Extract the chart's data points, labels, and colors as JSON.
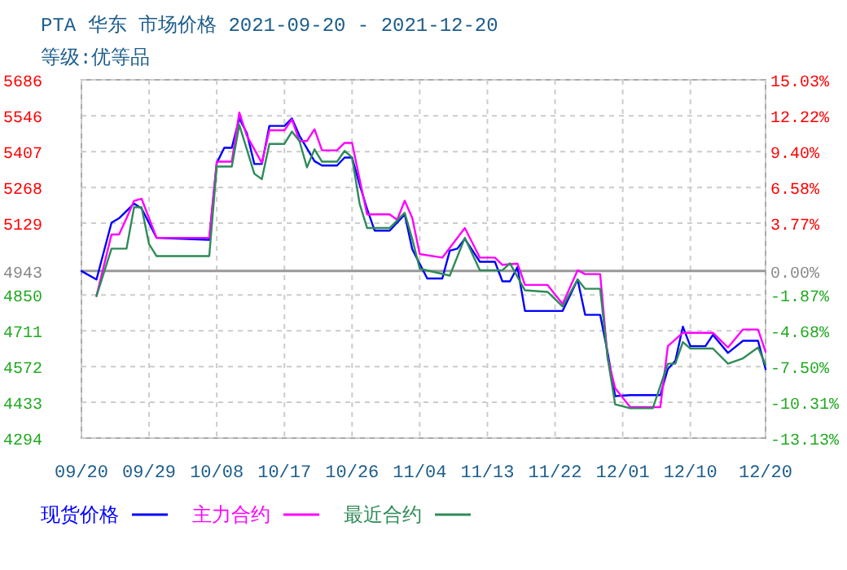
{
  "chart_data": {
    "type": "line",
    "title": "PTA 华东 市场价格 2021-09-20 - 2021-12-20",
    "subtitle": "等级:优等品",
    "xlim": [
      "2021-09-20",
      "2021-12-20"
    ],
    "xticks": [
      {
        "value": "2021-09-20",
        "label": "09/20"
      },
      {
        "value": "2021-09-29",
        "label": "09/29"
      },
      {
        "value": "2021-10-08",
        "label": "10/08"
      },
      {
        "value": "2021-10-17",
        "label": "10/17"
      },
      {
        "value": "2021-10-26",
        "label": "10/26"
      },
      {
        "value": "2021-11-04",
        "label": "11/04"
      },
      {
        "value": "2021-11-13",
        "label": "11/13"
      },
      {
        "value": "2021-11-22",
        "label": "11/22"
      },
      {
        "value": "2021-12-01",
        "label": "12/01"
      },
      {
        "value": "2021-12-10",
        "label": "12/10"
      },
      {
        "value": "2021-12-20",
        "label": "12/20"
      }
    ],
    "ylim": [
      4294,
      5686
    ],
    "yticks": [
      4294,
      4433,
      4572,
      4711,
      4850,
      4943,
      5129,
      5268,
      5407,
      5546,
      5686
    ],
    "y2lim": [
      -13.13,
      15.03
    ],
    "y2ticks": [
      {
        "value": -13.13,
        "label": "-13.13%"
      },
      {
        "value": -10.31,
        "label": "-10.31%"
      },
      {
        "value": -7.5,
        "label": "-7.50%"
      },
      {
        "value": -4.68,
        "label": "-4.68%"
      },
      {
        "value": -1.87,
        "label": "-1.87%"
      },
      {
        "value": 0,
        "label": "0.00%"
      },
      {
        "value": 3.77,
        "label": "3.77%"
      },
      {
        "value": 6.58,
        "label": "6.58%"
      },
      {
        "value": 9.4,
        "label": "9.40%"
      },
      {
        "value": 12.22,
        "label": "12.22%"
      },
      {
        "value": 15.03,
        "label": "15.03%"
      }
    ],
    "ref_lines": [
      {
        "axis": "y",
        "value": 4943,
        "color": "#999999"
      }
    ],
    "grid": true,
    "legend": "bottom",
    "marker": "none",
    "line_style": "solid",
    "series": [
      {
        "name": "现货价格",
        "color": "#0000ff",
        "x": [
          "2021-09-20",
          "2021-09-22",
          "2021-09-24",
          "2021-09-25",
          "2021-09-27",
          "2021-09-28",
          "2021-09-30",
          "2021-10-07",
          "2021-10-08",
          "2021-10-09",
          "2021-10-10",
          "2021-10-11",
          "2021-10-12",
          "2021-10-13",
          "2021-10-14",
          "2021-10-15",
          "2021-10-17",
          "2021-10-18",
          "2021-10-19",
          "2021-10-21",
          "2021-10-22",
          "2021-10-24",
          "2021-10-25",
          "2021-10-26",
          "2021-10-27",
          "2021-10-28",
          "2021-10-29",
          "2021-10-31",
          "2021-11-02",
          "2021-11-03",
          "2021-11-05",
          "2021-11-07",
          "2021-11-08",
          "2021-11-09",
          "2021-11-10",
          "2021-11-12",
          "2021-11-14",
          "2021-11-15",
          "2021-11-16",
          "2021-11-17",
          "2021-11-18",
          "2021-11-23",
          "2021-11-25",
          "2021-11-26",
          "2021-11-28",
          "2021-11-29",
          "2021-11-30",
          "2021-12-02",
          "2021-12-06",
          "2021-12-07",
          "2021-12-08",
          "2021-12-09",
          "2021-12-10",
          "2021-12-12",
          "2021-12-13",
          "2021-12-15",
          "2021-12-17",
          "2021-12-19",
          "2021-12-20"
        ],
        "values": [
          4943,
          4910,
          5131,
          5148,
          5205,
          5186,
          5072,
          5064,
          5363,
          5422,
          5422,
          5536,
          5479,
          5359,
          5359,
          5507,
          5507,
          5536,
          5469,
          5370,
          5353,
          5353,
          5384,
          5384,
          5279,
          5184,
          5100,
          5100,
          5163,
          5028,
          4914,
          4914,
          5022,
          5030,
          5068,
          4979,
          4979,
          4903,
          4903,
          4958,
          4788,
          4788,
          4910,
          4773,
          4773,
          4625,
          4457,
          4461,
          4461,
          4562,
          4594,
          4727,
          4651,
          4651,
          4695,
          4625,
          4672,
          4672,
          4562
        ]
      },
      {
        "name": "主力合约",
        "color": "#ff00ff",
        "x": [
          "2021-09-22",
          "2021-09-24",
          "2021-09-25",
          "2021-09-26",
          "2021-09-27",
          "2021-09-28",
          "2021-09-30",
          "2021-10-07",
          "2021-10-08",
          "2021-10-10",
          "2021-10-11",
          "2021-10-12",
          "2021-10-14",
          "2021-10-15",
          "2021-10-17",
          "2021-10-18",
          "2021-10-19",
          "2021-10-20",
          "2021-10-21",
          "2021-10-22",
          "2021-10-24",
          "2021-10-25",
          "2021-10-26",
          "2021-10-27",
          "2021-10-28",
          "2021-10-31",
          "2021-11-01",
          "2021-11-02",
          "2021-11-03",
          "2021-11-04",
          "2021-11-07",
          "2021-11-10",
          "2021-11-12",
          "2021-11-14",
          "2021-11-15",
          "2021-11-17",
          "2021-11-18",
          "2021-11-21",
          "2021-11-23",
          "2021-11-25",
          "2021-11-26",
          "2021-11-28",
          "2021-11-29",
          "2021-11-30",
          "2021-12-02",
          "2021-12-06",
          "2021-12-07",
          "2021-12-09",
          "2021-12-13",
          "2021-12-15",
          "2021-12-17",
          "2021-12-19",
          "2021-12-20"
        ],
        "values": [
          4846,
          5085,
          5085,
          5148,
          5216,
          5224,
          5072,
          5072,
          5368,
          5368,
          5559,
          5469,
          5363,
          5490,
          5490,
          5532,
          5448,
          5448,
          5494,
          5412,
          5412,
          5441,
          5441,
          5300,
          5163,
          5163,
          5142,
          5216,
          5150,
          5009,
          4995,
          5110,
          4995,
          4995,
          4967,
          4972,
          4889,
          4889,
          4815,
          4946,
          4931,
          4931,
          4604,
          4488,
          4414,
          4414,
          4651,
          4703,
          4703,
          4646,
          4716,
          4716,
          4630
        ]
      },
      {
        "name": "最近合约",
        "color": "#2e8b57",
        "x": [
          "2021-09-22",
          "2021-09-24",
          "2021-09-26",
          "2021-09-27",
          "2021-09-28",
          "2021-09-29",
          "2021-09-30",
          "2021-10-07",
          "2021-10-08",
          "2021-10-10",
          "2021-10-11",
          "2021-10-13",
          "2021-10-14",
          "2021-10-15",
          "2021-10-17",
          "2021-10-18",
          "2021-10-19",
          "2021-10-20",
          "2021-10-21",
          "2021-10-22",
          "2021-10-24",
          "2021-10-25",
          "2021-10-26",
          "2021-10-27",
          "2021-10-28",
          "2021-10-31",
          "2021-11-02",
          "2021-11-03",
          "2021-11-04",
          "2021-11-08",
          "2021-11-10",
          "2021-11-12",
          "2021-11-15",
          "2021-11-16",
          "2021-11-18",
          "2021-11-21",
          "2021-11-23",
          "2021-11-25",
          "2021-11-26",
          "2021-11-28",
          "2021-11-29",
          "2021-11-30",
          "2021-12-02",
          "2021-12-05",
          "2021-12-07",
          "2021-12-08",
          "2021-12-09",
          "2021-12-10",
          "2021-12-13",
          "2021-12-15",
          "2021-12-17",
          "2021-12-19",
          "2021-12-20"
        ],
        "values": [
          4846,
          5030,
          5030,
          5191,
          5191,
          5047,
          5001,
          5001,
          5349,
          5349,
          5511,
          5321,
          5300,
          5437,
          5437,
          5485,
          5448,
          5346,
          5416,
          5368,
          5368,
          5410,
          5384,
          5205,
          5110,
          5110,
          5169,
          5068,
          4952,
          4925,
          5072,
          4946,
          4946,
          4973,
          4868,
          4862,
          4805,
          4910,
          4874,
          4874,
          4604,
          4425,
          4410,
          4410,
          4583,
          4583,
          4667,
          4642,
          4642,
          4583,
          4604,
          4646,
          4579
        ]
      }
    ]
  }
}
